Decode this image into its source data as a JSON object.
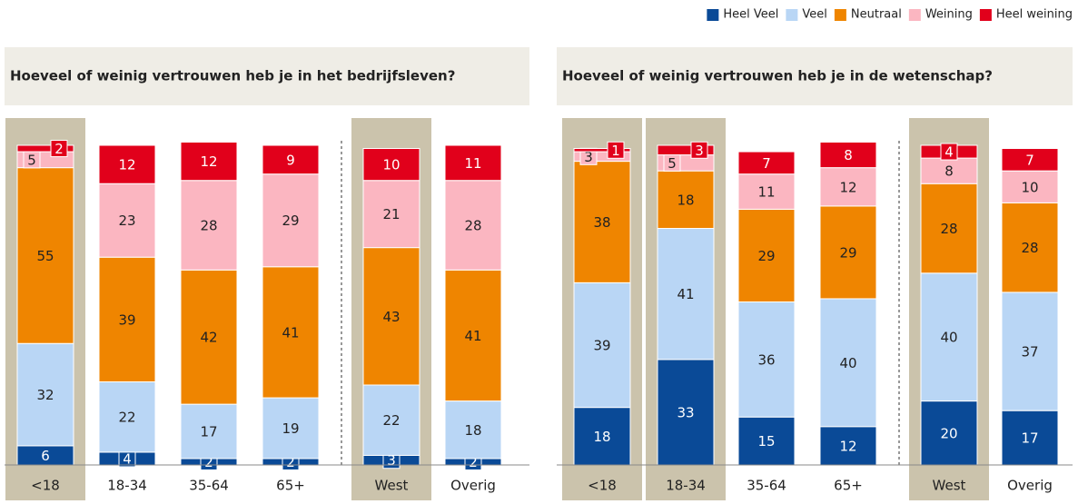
{
  "chart_data": [
    {
      "type": "stacked-bar",
      "title": "Hoeveel of weinig vertrouwen heb je in het bedrijfsleven?",
      "categories": [
        "<18",
        "18-34",
        "35-64",
        "65+",
        "West",
        "Overig"
      ],
      "highlight": [
        0,
        4
      ],
      "ylim": [
        0,
        100
      ],
      "series": [
        {
          "name": "Heel Veel",
          "color": "#0a4a97",
          "values": [
            6,
            4,
            2,
            2,
            3,
            2
          ]
        },
        {
          "name": "Veel",
          "color": "#b9d6f5",
          "values": [
            32,
            22,
            17,
            19,
            22,
            18
          ]
        },
        {
          "name": "Neutraal",
          "color": "#ef8500",
          "values": [
            55,
            39,
            42,
            41,
            43,
            41
          ]
        },
        {
          "name": "Weining",
          "color": "#fbb6c1",
          "values": [
            5,
            23,
            28,
            29,
            21,
            28
          ]
        },
        {
          "name": "Heel weining",
          "color": "#e1001b",
          "values": [
            2,
            12,
            12,
            9,
            10,
            11
          ]
        }
      ]
    },
    {
      "type": "stacked-bar",
      "title": "Hoeveel of weinig vertrouwen heb je in de wetenschap?",
      "categories": [
        "<18",
        "18-34",
        "35-64",
        "65+",
        "West",
        "Overig"
      ],
      "highlight": [
        0,
        1,
        4
      ],
      "ylim": [
        0,
        100
      ],
      "series": [
        {
          "color": "#0a4a97",
          "values": [
            18,
            33,
            15,
            12,
            20,
            17
          ]
        },
        {
          "color": "#b9d6f5",
          "values": [
            39,
            41,
            36,
            40,
            40,
            37
          ]
        },
        {
          "color": "#ef8500",
          "values": [
            38,
            18,
            29,
            29,
            28,
            28
          ]
        },
        {
          "color": "#fbb6c1",
          "values": [
            3,
            5,
            11,
            12,
            8,
            10
          ]
        },
        {
          "color": "#e1001b",
          "values": [
            1,
            3,
            7,
            8,
            4,
            7
          ]
        }
      ]
    }
  ]
}
